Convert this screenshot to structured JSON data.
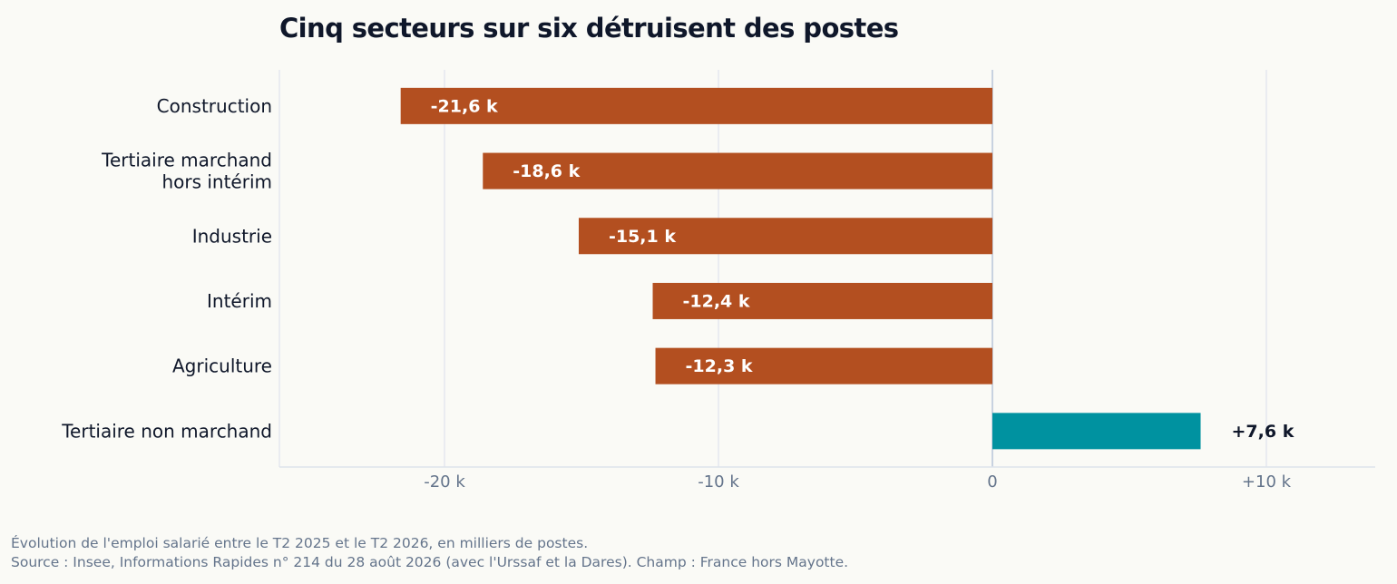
{
  "chart_data": {
    "type": "bar",
    "orientation": "horizontal",
    "title": "Cinq secteurs sur six détruisent des postes",
    "categories": [
      [
        "Construction"
      ],
      [
        "Tertiaire marchand",
        "hors intérim"
      ],
      [
        "Industrie"
      ],
      [
        "Intérim"
      ],
      [
        "Agriculture"
      ],
      [
        "Tertiaire non marchand"
      ]
    ],
    "values": [
      -21.6,
      -18.6,
      -15.1,
      -12.4,
      -12.3,
      7.6
    ],
    "value_labels": [
      "-21,6 k",
      "-18,6 k",
      "-15,1 k",
      "-12,4 k",
      "-12,3 k",
      "+7,6 k"
    ],
    "xlim": [
      -26,
      14
    ],
    "x_ticks": [
      -20,
      -10,
      0,
      10
    ],
    "x_tick_labels": [
      "-20 k",
      "-10 k",
      "0",
      "+10 k"
    ],
    "grid": true,
    "colors": {
      "negative": "#b34f20",
      "positive": "#0092a0"
    }
  },
  "footnotes": [
    "Évolution de l'emploi salarié entre le T2 2025 et le T2 2026, en milliers de postes.",
    "Source : Insee, Informations Rapides n° 214 du 28 août 2026 (avec l'Urssaf et la Dares). Champ : France hors Mayotte."
  ]
}
